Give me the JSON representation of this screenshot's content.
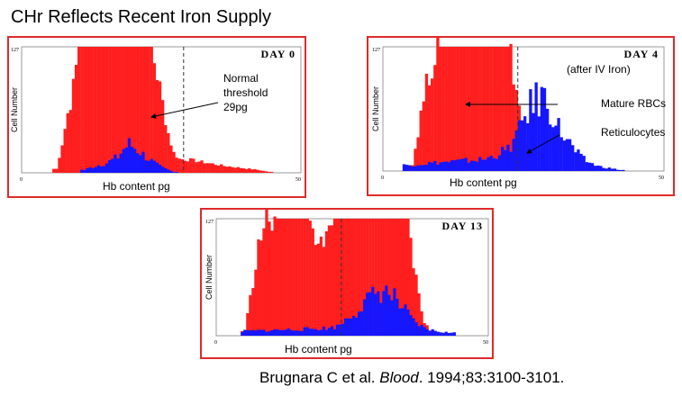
{
  "title": "CHr Reflects Recent Iron Supply",
  "citation": {
    "authors": "Brugnara C et al. ",
    "journal": "Blood",
    "details": ". 1994;83:3100-3101."
  },
  "colors": {
    "mature": "#ff1f1f",
    "retic": "#1616ff",
    "border": "#e02a2a"
  },
  "chart_data": [
    {
      "type": "bar",
      "title": "DAY 0",
      "xlabel": "Hb content pg",
      "ylabel": "Cell Number",
      "xlim": [
        0,
        50
      ],
      "ylim": [
        0,
        127
      ],
      "x_ticks": [
        "0",
        "50"
      ],
      "y_ticks": [
        "127"
      ],
      "threshold": 29,
      "annotations": [
        "Normal",
        "threshold",
        "29pg"
      ],
      "series": [
        {
          "color": "#ff1f1f",
          "peak_range": [
            10,
            23
          ],
          "rise": [
            [
              6,
              4
            ],
            [
              7,
              30
            ],
            [
              8,
              60
            ],
            [
              9,
              85
            ],
            [
              10,
              127
            ]
          ],
          "fall": [
            [
              23,
              127
            ],
            [
              24,
              100
            ],
            [
              25,
              70
            ],
            [
              26,
              40
            ],
            [
              27,
              20
            ],
            [
              28,
              14
            ],
            [
              30,
              13
            ],
            [
              33,
              10
            ],
            [
              36,
              7
            ],
            [
              39,
              5
            ],
            [
              42,
              3
            ],
            [
              44,
              1
            ]
          ]
        },
        {
          "color": "#1616ff",
          "points": [
            [
              11,
              3
            ],
            [
              13,
              7
            ],
            [
              15,
              10
            ],
            [
              17,
              16
            ],
            [
              18,
              24
            ],
            [
              19,
              29
            ],
            [
              20,
              25
            ],
            [
              21,
              21
            ],
            [
              22,
              16
            ],
            [
              23,
              12
            ],
            [
              24,
              8
            ],
            [
              25,
              5
            ],
            [
              26,
              3
            ],
            [
              27,
              1
            ]
          ]
        }
      ]
    },
    {
      "type": "bar",
      "title": "DAY 4",
      "subtitle": "(after IV Iron)",
      "xlabel": "Hb content pg",
      "ylabel": "Cell Number",
      "xlim": [
        0,
        50
      ],
      "ylim": [
        0,
        127
      ],
      "x_ticks": [
        "0",
        "50"
      ],
      "y_ticks": [
        "127"
      ],
      "threshold": 24,
      "annotations": [
        "Mature RBCs",
        "Reticulocytes"
      ],
      "series": [
        {
          "color": "#ff1f1f",
          "peak_range": [
            10,
            22
          ],
          "rise": [
            [
              5,
              6
            ],
            [
              6,
              40
            ],
            [
              7,
              75
            ],
            [
              8,
              100
            ],
            [
              9,
              120
            ],
            [
              10,
              127
            ]
          ],
          "fall": [
            [
              22,
              127
            ],
            [
              23,
              100
            ],
            [
              24,
              65
            ],
            [
              25,
              30
            ],
            [
              26,
              10
            ],
            [
              27,
              3
            ]
          ]
        },
        {
          "color": "#1616ff",
          "points": [
            [
              4,
              6
            ],
            [
              8,
              8
            ],
            [
              13,
              10
            ],
            [
              18,
              12
            ],
            [
              22,
              22
            ],
            [
              24,
              40
            ],
            [
              25,
              58
            ],
            [
              26,
              66
            ],
            [
              27,
              72
            ],
            [
              28,
              78
            ],
            [
              29,
              68
            ],
            [
              30,
              60
            ],
            [
              31,
              44
            ],
            [
              32,
              36
            ],
            [
              33,
              28
            ],
            [
              34,
              20
            ],
            [
              35,
              14
            ],
            [
              36,
              10
            ],
            [
              38,
              5
            ],
            [
              40,
              3
            ],
            [
              42,
              1
            ]
          ]
        }
      ]
    },
    {
      "type": "bar",
      "title": "DAY 13",
      "xlabel": "Hb content pg",
      "ylabel": "Cell Number",
      "xlim": [
        0,
        50
      ],
      "ylim": [
        0,
        127
      ],
      "x_ticks": [
        "0",
        "50"
      ],
      "y_ticks": [
        "127"
      ],
      "threshold": 23,
      "series": [
        {
          "color": "#ff1f1f",
          "peak_range": [
            11,
            35
          ],
          "rise": [
            [
              5,
              5
            ],
            [
              6,
              40
            ],
            [
              7,
              80
            ],
            [
              8,
              110
            ],
            [
              9,
              125
            ],
            [
              11,
              127
            ]
          ],
          "fall": [
            [
              35,
              127
            ],
            [
              36,
              80
            ],
            [
              37,
              45
            ],
            [
              38,
              15
            ],
            [
              39,
              5
            ]
          ],
          "dip": [
            [
              17,
              21,
              110
            ]
          ]
        },
        {
          "color": "#1616ff",
          "points": [
            [
              5,
              5
            ],
            [
              10,
              6
            ],
            [
              15,
              7
            ],
            [
              20,
              8
            ],
            [
              22,
              10
            ],
            [
              24,
              20
            ],
            [
              26,
              30
            ],
            [
              28,
              40
            ],
            [
              30,
              50
            ],
            [
              32,
              44
            ],
            [
              34,
              30
            ],
            [
              36,
              15
            ],
            [
              38,
              8
            ],
            [
              40,
              5
            ],
            [
              43,
              3
            ]
          ]
        }
      ]
    }
  ]
}
